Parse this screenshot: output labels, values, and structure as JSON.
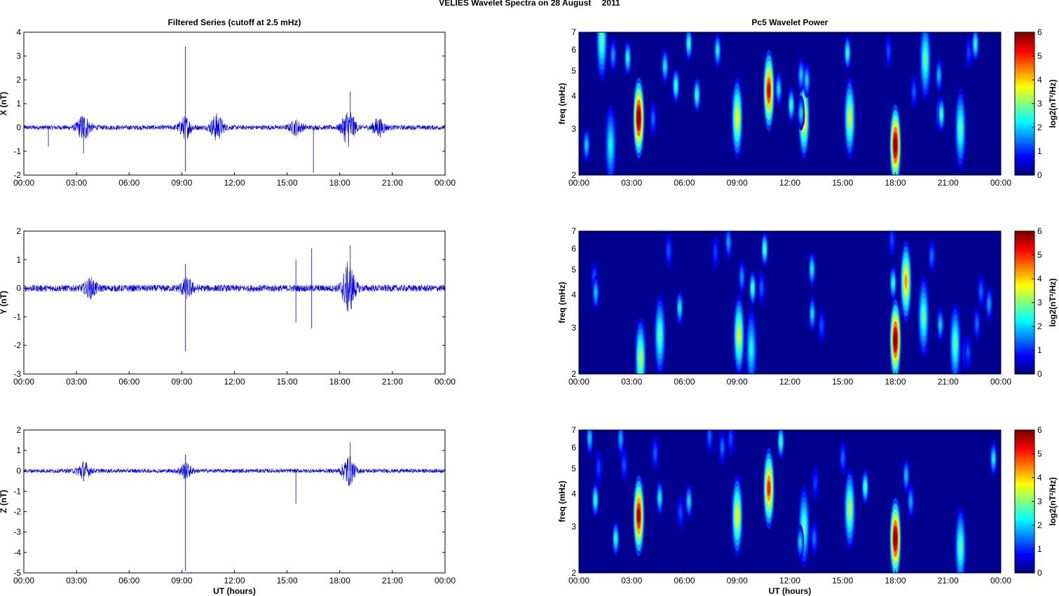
{
  "figure": {
    "title": "VELIES Wavelet Spectra on 28 August",
    "year": "2011"
  },
  "colors": {
    "trace": "#0000ee",
    "axis": "#000000",
    "background": "#ffffff",
    "spectrogram_background": "#00008f",
    "colormap": "jet"
  },
  "chart_data": [
    {
      "type": "line",
      "title": "Filtered Series (cutoff at 2.5 mHz)",
      "ylabel": "X (nT)",
      "xlabel": "",
      "x_ticks": [
        "00:00",
        "03:00",
        "06:00",
        "09:00",
        "12:00",
        "15:00",
        "18:00",
        "21:00",
        "00:00"
      ],
      "xlim_hours": [
        0,
        24
      ],
      "ylim": [
        -2,
        4
      ],
      "y_ticks": [
        -2,
        -1,
        0,
        1,
        2,
        3,
        4
      ],
      "baseline_noise_nT": 0.1,
      "bursts": [
        {
          "t": 3.4,
          "amp": 0.75
        },
        {
          "t": 9.2,
          "amp": 0.6
        },
        {
          "t": 11.0,
          "amp": 0.75
        },
        {
          "t": 15.5,
          "amp": 0.4
        },
        {
          "t": 18.5,
          "amp": 1.1
        },
        {
          "t": 20.2,
          "amp": 0.5
        }
      ],
      "spikes": [
        {
          "t": 9.2,
          "value": 3.4
        },
        {
          "t": 9.2,
          "value": -1.85
        },
        {
          "t": 18.6,
          "value": 1.5
        },
        {
          "t": 16.5,
          "value": -1.9
        },
        {
          "t": 1.4,
          "value": -0.8
        },
        {
          "t": 3.4,
          "value": -1.1
        }
      ]
    },
    {
      "type": "heatmap",
      "title": "Pc5 Wavelet Power",
      "ylabel": "freq (mHz)",
      "xlabel": "",
      "x_ticks": [
        "00:00",
        "03:00",
        "06:00",
        "09:00",
        "12:00",
        "15:00",
        "18:00",
        "21:00",
        "00:00"
      ],
      "xlim_hours": [
        0,
        24
      ],
      "y_scale": "log",
      "ylim_mHz": [
        2,
        7
      ],
      "y_ticks": [
        2,
        3,
        4,
        5,
        6,
        7
      ],
      "colorbar": {
        "label": "log2(nT²/Hz)",
        "range": [
          0,
          6
        ],
        "ticks": [
          0,
          1,
          2,
          3,
          4,
          5,
          6
        ]
      },
      "blobs": [
        {
          "t": 3.4,
          "f": 3.3,
          "power": 6.0
        },
        {
          "t": 1.3,
          "f": 6.5,
          "power": 2.5
        },
        {
          "t": 1.8,
          "f": 2.6,
          "power": 2.0
        },
        {
          "t": 9.0,
          "f": 3.3,
          "power": 3.5
        },
        {
          "t": 10.8,
          "f": 4.2,
          "power": 5.2
        },
        {
          "t": 12.8,
          "f": 3.3,
          "power": 4.0
        },
        {
          "t": 15.4,
          "f": 3.3,
          "power": 3.2
        },
        {
          "t": 18.0,
          "f": 2.6,
          "power": 6.0
        },
        {
          "t": 19.7,
          "f": 5.5,
          "power": 2.5
        },
        {
          "t": 21.7,
          "f": 3.0,
          "power": 2.5
        }
      ]
    },
    {
      "type": "line",
      "title": "",
      "ylabel": "Y (nT)",
      "xlabel": "",
      "x_ticks": [
        "00:00",
        "03:00",
        "06:00",
        "09:00",
        "12:00",
        "15:00",
        "18:00",
        "21:00",
        "00:00"
      ],
      "xlim_hours": [
        0,
        24
      ],
      "ylim": [
        -3,
        2
      ],
      "y_ticks": [
        -3,
        -2,
        -1,
        0,
        1,
        2
      ],
      "baseline_noise_nT": 0.12,
      "bursts": [
        {
          "t": 3.8,
          "amp": 0.4
        },
        {
          "t": 9.3,
          "amp": 0.4
        },
        {
          "t": 18.5,
          "amp": 1.2
        }
      ],
      "spikes": [
        {
          "t": 9.2,
          "value": -2.2
        },
        {
          "t": 9.2,
          "value": 0.85
        },
        {
          "t": 16.4,
          "value": 1.4
        },
        {
          "t": 16.4,
          "value": -1.4
        },
        {
          "t": 15.5,
          "value": 1.0
        },
        {
          "t": 15.5,
          "value": -1.2
        },
        {
          "t": 18.6,
          "value": 1.5
        }
      ]
    },
    {
      "type": "heatmap",
      "title": "",
      "ylabel": "freq (mHz)",
      "xlabel": "",
      "x_ticks": [
        "00:00",
        "03:00",
        "06:00",
        "09:00",
        "12:00",
        "15:00",
        "18:00",
        "21:00",
        "00:00"
      ],
      "xlim_hours": [
        0,
        24
      ],
      "y_scale": "log",
      "ylim_mHz": [
        2,
        7
      ],
      "y_ticks": [
        2,
        3,
        4,
        5,
        6,
        7
      ],
      "colorbar": {
        "label": "log2(nT²/Hz)",
        "range": [
          0,
          6
        ],
        "ticks": [
          0,
          1,
          2,
          3,
          4,
          5,
          6
        ]
      },
      "blobs": [
        {
          "t": 3.5,
          "f": 2.3,
          "power": 3.0
        },
        {
          "t": 4.6,
          "f": 2.8,
          "power": 2.5
        },
        {
          "t": 9.1,
          "f": 2.8,
          "power": 3.3
        },
        {
          "t": 9.8,
          "f": 2.5,
          "power": 2.0
        },
        {
          "t": 18.0,
          "f": 2.7,
          "power": 6.0
        },
        {
          "t": 18.6,
          "f": 4.5,
          "power": 4.0
        },
        {
          "t": 19.6,
          "f": 3.3,
          "power": 2.5
        },
        {
          "t": 21.4,
          "f": 2.6,
          "power": 2.5
        }
      ]
    },
    {
      "type": "line",
      "title": "",
      "ylabel": "Z (nT)",
      "xlabel": "UT (hours)",
      "x_ticks": [
        "00:00",
        "03:00",
        "06:00",
        "09:00",
        "12:00",
        "15:00",
        "18:00",
        "21:00",
        "00:00"
      ],
      "xlim_hours": [
        0,
        24
      ],
      "ylim": [
        -5,
        2
      ],
      "y_ticks": [
        -5,
        -4,
        -3,
        -2,
        -1,
        0,
        1,
        2
      ],
      "baseline_noise_nT": 0.1,
      "bursts": [
        {
          "t": 3.4,
          "amp": 0.6
        },
        {
          "t": 9.2,
          "amp": 0.5
        },
        {
          "t": 18.5,
          "amp": 1.0
        }
      ],
      "spikes": [
        {
          "t": 9.2,
          "value": -4.9
        },
        {
          "t": 9.2,
          "value": 0.8
        },
        {
          "t": 15.5,
          "value": -1.6
        },
        {
          "t": 18.6,
          "value": 1.4
        }
      ]
    },
    {
      "type": "heatmap",
      "title": "",
      "ylabel": "freq (mHz)",
      "xlabel": "UT (hours)",
      "x_ticks": [
        "00:00",
        "03:00",
        "06:00",
        "09:00",
        "12:00",
        "15:00",
        "18:00",
        "21:00",
        "00:00"
      ],
      "xlim_hours": [
        0,
        24
      ],
      "y_scale": "log",
      "ylim_mHz": [
        2,
        7
      ],
      "y_ticks": [
        2,
        3,
        4,
        5,
        6,
        7
      ],
      "colorbar": {
        "label": "log2(nT²/Hz)",
        "range": [
          0,
          6
        ],
        "ticks": [
          0,
          1,
          2,
          3,
          4,
          5,
          6
        ]
      },
      "blobs": [
        {
          "t": 3.4,
          "f": 3.3,
          "power": 5.5
        },
        {
          "t": 9.0,
          "f": 3.3,
          "power": 3.5
        },
        {
          "t": 10.8,
          "f": 4.2,
          "power": 4.8
        },
        {
          "t": 12.8,
          "f": 3.0,
          "power": 2.5
        },
        {
          "t": 15.4,
          "f": 3.5,
          "power": 3.0
        },
        {
          "t": 18.0,
          "f": 2.7,
          "power": 6.0
        },
        {
          "t": 21.7,
          "f": 2.5,
          "power": 2.5
        }
      ]
    }
  ]
}
